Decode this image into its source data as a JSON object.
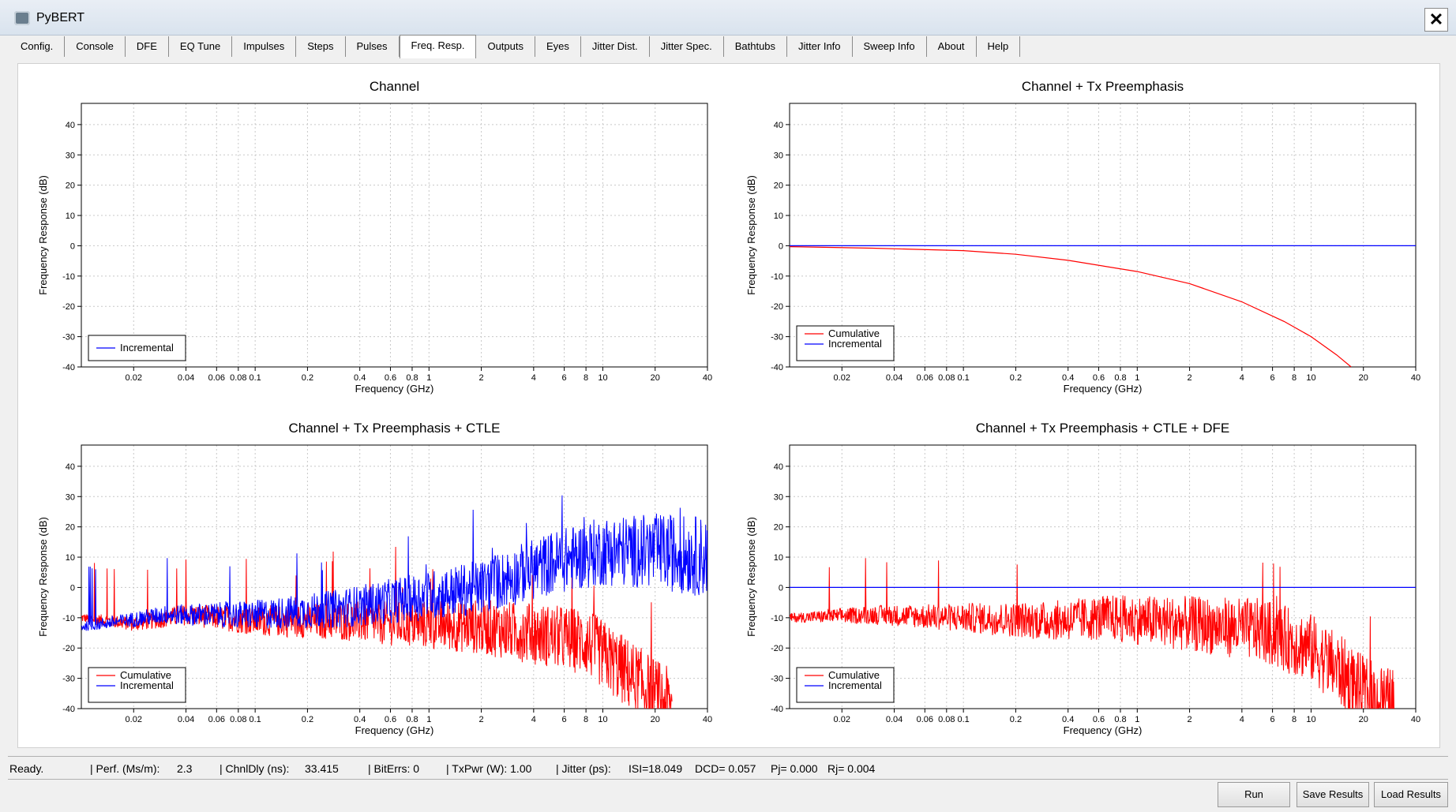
{
  "window": {
    "title": "PyBERT",
    "close_label": "✕"
  },
  "tabs": [
    "Config.",
    "Console",
    "DFE",
    "EQ Tune",
    "Impulses",
    "Steps",
    "Pulses",
    "Freq. Resp.",
    "Outputs",
    "Eyes",
    "Jitter Dist.",
    "Jitter Spec.",
    "Bathtubs",
    "Jitter Info",
    "Sweep Info",
    "About",
    "Help"
  ],
  "active_tab": "Freq. Resp.",
  "status": {
    "ready": "Ready.",
    "perf_label": "| Perf. (Ms/m):",
    "perf_value": "2.3",
    "chnl_label": "| ChnlDly (ns):",
    "chnl_value": "33.415",
    "biterrs": "| BitErrs: 0",
    "txpwr": "| TxPwr (W): 1.00",
    "jitter_label": "| Jitter (ps):",
    "isi": "ISI=18.049",
    "dcd": "DCD= 0.057",
    "pj": "Pj= 0.000",
    "rj": "Rj= 0.004"
  },
  "buttons": {
    "run": "Run",
    "save": "Save Results",
    "load": "Load Results"
  },
  "colors": {
    "cumulative": "#ff0000",
    "incremental": "#0000ff"
  },
  "chart_data": [
    {
      "type": "line",
      "title": "Channel",
      "xlabel": "Frequency (GHz)",
      "ylabel": "Frequency Response (dB)",
      "x_scale": "log",
      "xlim": [
        0.01,
        40
      ],
      "ylim": [
        -40,
        47
      ],
      "grid": true,
      "legend": "bottom-left",
      "series": [
        {
          "name": "Incremental",
          "points": []
        }
      ]
    },
    {
      "type": "line",
      "title": "Channel + Tx Preemphasis",
      "xlabel": "Frequency (GHz)",
      "ylabel": "Frequency Response (dB)",
      "x_scale": "log",
      "xlim": [
        0.01,
        40
      ],
      "ylim": [
        -40,
        47
      ],
      "grid": true,
      "legend": "bottom-left",
      "series": [
        {
          "name": "Cumulative",
          "points": [
            [
              0.01,
              -0.3
            ],
            [
              0.03,
              -0.8
            ],
            [
              0.1,
              -1.6
            ],
            [
              0.2,
              -2.8
            ],
            [
              0.4,
              -4.8
            ],
            [
              1,
              -8.5
            ],
            [
              2,
              -12.5
            ],
            [
              4,
              -18.5
            ],
            [
              7,
              -25
            ],
            [
              10,
              -30
            ],
            [
              14,
              -36
            ],
            [
              17,
              -40
            ]
          ]
        },
        {
          "name": "Incremental",
          "points": [
            [
              0.01,
              0
            ],
            [
              40,
              0
            ]
          ]
        }
      ]
    },
    {
      "type": "line",
      "title": "Channel + Tx Preemphasis + CTLE",
      "xlabel": "Frequency (GHz)",
      "ylabel": "Frequency Response (dB)",
      "x_scale": "log",
      "xlim": [
        0.01,
        40
      ],
      "ylim": [
        -40,
        47
      ],
      "grid": true,
      "legend": "bottom-left",
      "series": [
        {
          "name": "Cumulative",
          "points": [
            [
              0.01,
              -10
            ],
            [
              0.02,
              -12
            ],
            [
              0.04,
              -9
            ],
            [
              0.1,
              -11
            ],
            [
              0.3,
              -11
            ],
            [
              0.7,
              -12
            ],
            [
              2,
              -13
            ],
            [
              5,
              -16
            ],
            [
              8,
              -18
            ],
            [
              10,
              -22
            ],
            [
              15,
              -30
            ],
            [
              25,
              -40
            ]
          ]
        },
        {
          "name": "Incremental",
          "points": [
            [
              0.01,
              -13
            ],
            [
              0.03,
              -9
            ],
            [
              0.1,
              -9
            ],
            [
              0.3,
              -7
            ],
            [
              0.7,
              -4
            ],
            [
              2,
              0
            ],
            [
              5,
              8
            ],
            [
              10,
              12
            ],
            [
              20,
              12
            ],
            [
              40,
              10
            ]
          ]
        }
      ]
    },
    {
      "type": "line",
      "title": "Channel + Tx Preemphasis + CTLE + DFE",
      "xlabel": "Frequency (GHz)",
      "ylabel": "Frequency Response (dB)",
      "x_scale": "log",
      "xlim": [
        0.01,
        40
      ],
      "ylim": [
        -40,
        47
      ],
      "grid": true,
      "legend": "bottom-left",
      "series": [
        {
          "name": "Cumulative",
          "points": [
            [
              0.01,
              -10
            ],
            [
              0.03,
              -9
            ],
            [
              0.1,
              -10
            ],
            [
              0.3,
              -11
            ],
            [
              0.7,
              -10
            ],
            [
              2,
              -12
            ],
            [
              5,
              -14
            ],
            [
              8,
              -18
            ],
            [
              10,
              -20
            ],
            [
              15,
              -28
            ],
            [
              20,
              -35
            ],
            [
              30,
              -40
            ]
          ]
        },
        {
          "name": "Incremental",
          "points": [
            [
              0.01,
              0
            ],
            [
              40,
              0
            ]
          ]
        }
      ]
    }
  ]
}
